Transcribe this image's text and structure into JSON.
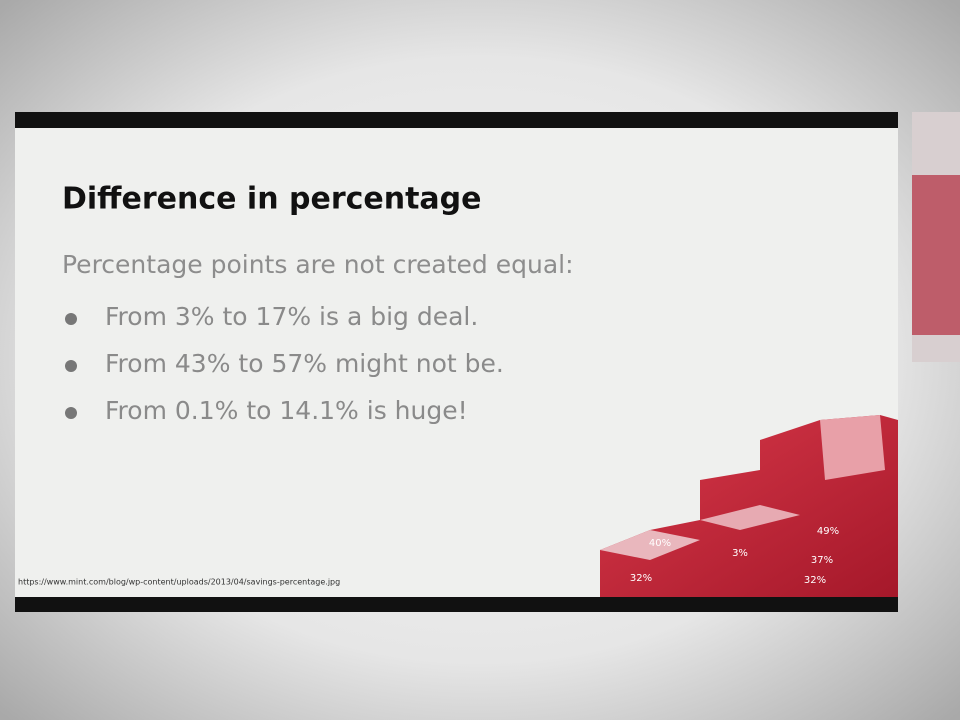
{
  "slide": {
    "title": "Difference in percentage",
    "intro": "Percentage points are not created equal:",
    "bullets": [
      "From 3% to 17% is a big deal.",
      "From 43% to 57% might not be.",
      "From 0.1% to 14.1% is huge!"
    ],
    "source": "https://www.mint.com/blog/wp-content/uploads/2013/04/savings-percentage.jpg",
    "image_labels": [
      "40%",
      "49%",
      "3%",
      "37%",
      "32%",
      "32%"
    ]
  }
}
